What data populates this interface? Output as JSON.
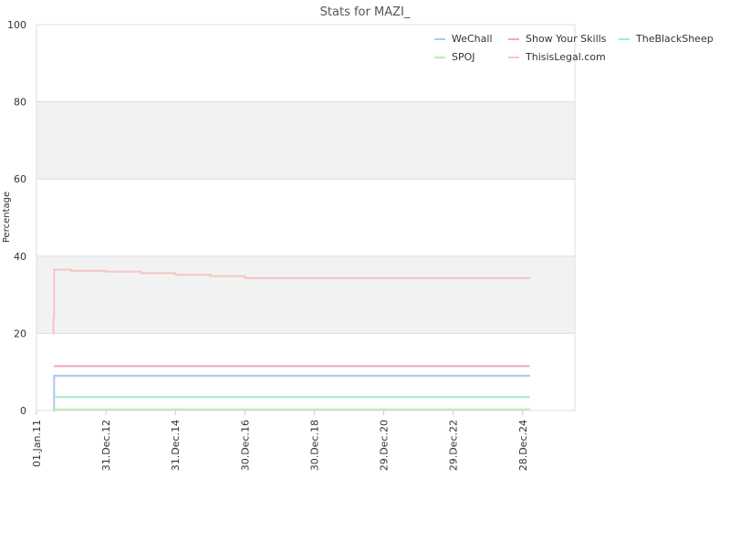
{
  "chart_data": {
    "type": "line",
    "title": "Stats for MAZI_",
    "xlabel": "",
    "ylabel": "Percentage",
    "ylim": [
      0,
      100
    ],
    "xlim": [
      "2011-01-01",
      "2026-06-30"
    ],
    "y_ticks": [
      0,
      20,
      40,
      60,
      80,
      100
    ],
    "x_ticks": [
      {
        "date": "2011-01-01",
        "label": "01.Jan.11"
      },
      {
        "date": "2012-12-31",
        "label": "31.Dec.12"
      },
      {
        "date": "2014-12-31",
        "label": "31.Dec.14"
      },
      {
        "date": "2016-12-30",
        "label": "30.Dec.16"
      },
      {
        "date": "2018-12-30",
        "label": "30.Dec.18"
      },
      {
        "date": "2020-12-29",
        "label": "29.Dec.20"
      },
      {
        "date": "2022-12-29",
        "label": "29.Dec.22"
      },
      {
        "date": "2024-12-28",
        "label": "28.Dec.24"
      }
    ],
    "bands": [
      {
        "from": 20,
        "to": 40,
        "color": "#f2f2f2"
      },
      {
        "from": 60,
        "to": 80,
        "color": "#f2f2f2"
      }
    ],
    "grid": true,
    "legend_position": "top-right",
    "series": [
      {
        "name": "WeChall",
        "color": "#a8c8ef",
        "x": [
          "2011-07-01",
          "2011-07-05",
          "2025-03-15"
        ],
        "values": [
          0,
          9,
          9
        ]
      },
      {
        "name": "Show Your Skills",
        "color": "#f4a9c2",
        "x": [
          "2011-07-01",
          "2025-03-15"
        ],
        "values": [
          11.5,
          11.5
        ]
      },
      {
        "name": "TheBlackSheep",
        "color": "#a6e6da",
        "x": [
          "2011-07-01",
          "2025-03-15"
        ],
        "values": [
          3.5,
          3.5
        ]
      },
      {
        "name": "SPOJ",
        "color": "#b9efb0",
        "x": [
          "2011-07-01",
          "2025-03-15"
        ],
        "values": [
          0.3,
          0.3
        ]
      },
      {
        "name": "ThisisLegal.com",
        "color": "#f7c4c4",
        "x": [
          "2011-06-20",
          "2011-06-28",
          "2011-07-05",
          "2012-01-01",
          "2013-01-01",
          "2014-01-01",
          "2015-01-01",
          "2016-01-01",
          "2017-01-01",
          "2025-03-15"
        ],
        "values": [
          20,
          24,
          36.5,
          36.2,
          36.0,
          35.6,
          35.2,
          34.8,
          34.3,
          34.3
        ]
      }
    ]
  }
}
